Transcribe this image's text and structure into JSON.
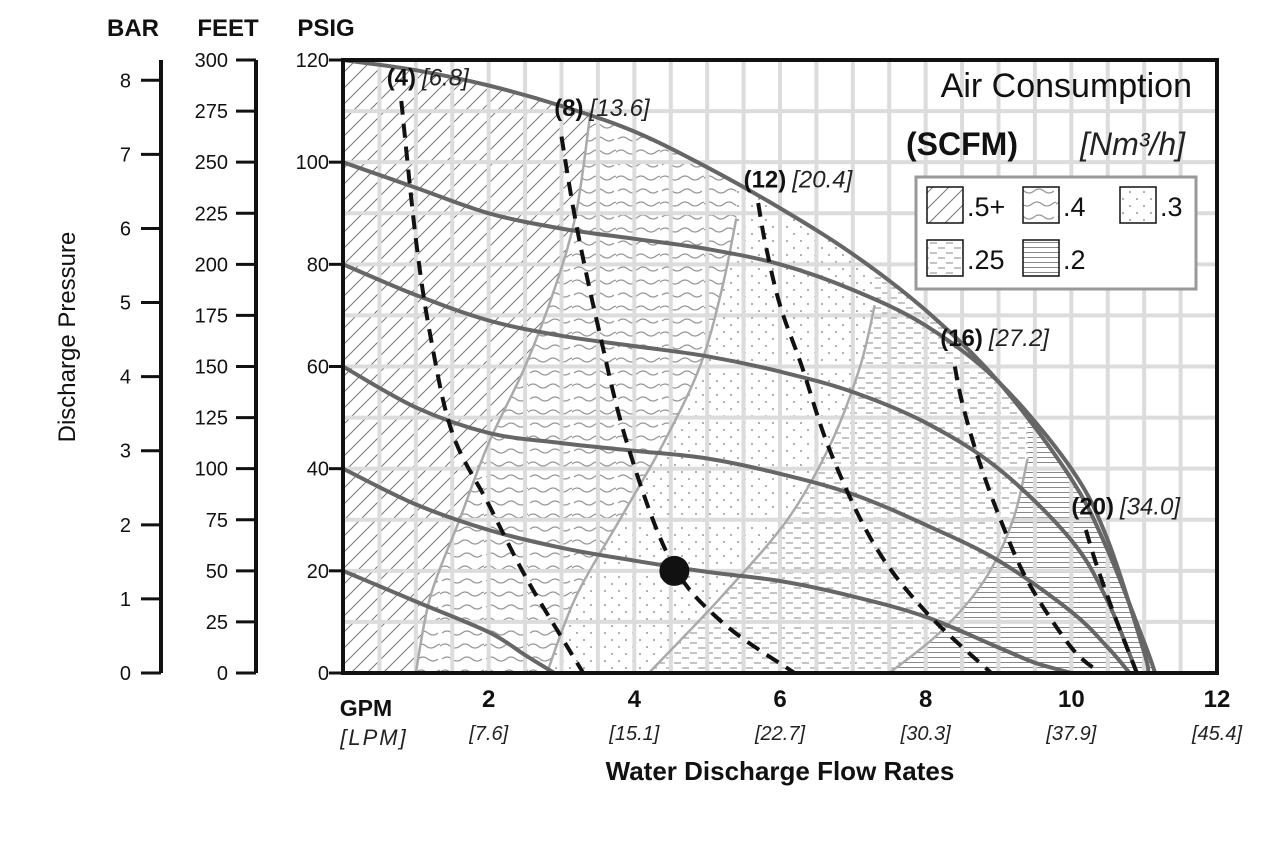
{
  "chart_data": {
    "type": "line",
    "title": "Air Consumption",
    "legend_title": "(SCFM)",
    "legend_title_metric": "[Nm³/h]",
    "legend_position": "top-right",
    "grid": true,
    "xlabel": "Water Discharge Flow Rates",
    "x_unit": "GPM",
    "x_unit_metric": "[LPM]",
    "xlim": [
      0,
      12
    ],
    "x_ticks": [
      {
        "value": 2,
        "label": "2",
        "metric": "[7.6]"
      },
      {
        "value": 4,
        "label": "4",
        "metric": "[15.1]"
      },
      {
        "value": 6,
        "label": "6",
        "metric": "[22.7]"
      },
      {
        "value": 8,
        "label": "8",
        "metric": "[30.3]"
      },
      {
        "value": 10,
        "label": "10",
        "metric": "[37.9]"
      },
      {
        "value": 12,
        "label": "12",
        "metric": "[45.4]"
      }
    ],
    "ylabel": "Discharge Pressure",
    "y_unit": "PSIG",
    "ylim": [
      0,
      120
    ],
    "y_ticks": [
      0,
      20,
      40,
      60,
      80,
      100,
      120
    ],
    "feet_axis": {
      "label": "FEET",
      "range": [
        0,
        300
      ],
      "ticks": [
        0,
        25,
        50,
        75,
        100,
        125,
        150,
        175,
        200,
        225,
        250,
        275,
        300
      ]
    },
    "bar_axis": {
      "label": "BAR",
      "ticks": [
        0,
        1,
        2,
        3,
        4,
        5,
        6,
        7,
        8
      ]
    },
    "pressure_curves": [
      {
        "inlet_psig": 120,
        "points": [
          [
            0,
            120
          ],
          [
            1,
            118
          ],
          [
            2,
            115
          ],
          [
            3,
            111
          ],
          [
            4,
            106
          ],
          [
            5,
            99
          ],
          [
            6,
            91
          ],
          [
            7,
            82
          ],
          [
            8,
            71
          ],
          [
            9,
            57
          ],
          [
            10,
            38
          ],
          [
            10.5,
            24
          ],
          [
            11,
            6
          ],
          [
            11.15,
            0
          ]
        ]
      },
      {
        "inlet_psig": 100,
        "points": [
          [
            0,
            100
          ],
          [
            1,
            95
          ],
          [
            2,
            90
          ],
          [
            3,
            87
          ],
          [
            4,
            85
          ],
          [
            5,
            83
          ],
          [
            6,
            80
          ],
          [
            7,
            75
          ],
          [
            8,
            68
          ],
          [
            9,
            57
          ],
          [
            10,
            40
          ],
          [
            10.5,
            26
          ],
          [
            11,
            4
          ],
          [
            11.05,
            0
          ]
        ]
      },
      {
        "inlet_psig": 80,
        "points": [
          [
            0,
            80
          ],
          [
            1,
            74
          ],
          [
            2,
            69
          ],
          [
            3,
            66
          ],
          [
            4,
            64
          ],
          [
            5,
            62
          ],
          [
            6,
            59
          ],
          [
            7,
            55
          ],
          [
            8,
            49
          ],
          [
            9,
            40
          ],
          [
            10,
            26
          ],
          [
            10.5,
            14
          ],
          [
            10.9,
            0
          ]
        ]
      },
      {
        "inlet_psig": 60,
        "points": [
          [
            0,
            60
          ],
          [
            1,
            52
          ],
          [
            2,
            47
          ],
          [
            3,
            45
          ],
          [
            4,
            43.5
          ],
          [
            5,
            42
          ],
          [
            6,
            39
          ],
          [
            7,
            35
          ],
          [
            8,
            29
          ],
          [
            9,
            22
          ],
          [
            10,
            12
          ],
          [
            10.5,
            5
          ],
          [
            10.8,
            0
          ]
        ]
      },
      {
        "inlet_psig": 40,
        "points": [
          [
            0,
            40
          ],
          [
            1,
            33
          ],
          [
            2,
            28
          ],
          [
            3,
            24.5
          ],
          [
            4,
            22
          ],
          [
            5,
            19.8
          ],
          [
            6,
            18
          ],
          [
            7,
            15
          ],
          [
            8,
            11
          ],
          [
            9,
            5
          ],
          [
            9.5,
            2
          ],
          [
            10,
            0
          ]
        ]
      },
      {
        "inlet_psig": 20,
        "points": [
          [
            0,
            20
          ],
          [
            1,
            14
          ],
          [
            2,
            8
          ],
          [
            2.5,
            3.5
          ],
          [
            2.9,
            0
          ]
        ]
      }
    ],
    "air_consumption_curves": [
      {
        "label": "(4)",
        "metric": "[6.8]",
        "points": [
          [
            0.8,
            112
          ],
          [
            1.0,
            85
          ],
          [
            1.2,
            66
          ],
          [
            1.5,
            47
          ],
          [
            2,
            33
          ],
          [
            2.5,
            19
          ],
          [
            3,
            7
          ],
          [
            3.3,
            0
          ]
        ],
        "label_at": [
          0.6,
          115
        ]
      },
      {
        "label": "(8)",
        "metric": "[13.6]",
        "points": [
          [
            3.0,
            105
          ],
          [
            3.2,
            88
          ],
          [
            3.5,
            68
          ],
          [
            3.9,
            45
          ],
          [
            4.5,
            22
          ],
          [
            5.2,
            10
          ],
          [
            6.2,
            0
          ]
        ],
        "label_at": [
          2.9,
          109
        ]
      },
      {
        "label": "(12)",
        "metric": "[20.4]",
        "points": [
          [
            5.7,
            92
          ],
          [
            5.8,
            84
          ],
          [
            6.0,
            72
          ],
          [
            6.3,
            60
          ],
          [
            6.7,
            43
          ],
          [
            7.3,
            25
          ],
          [
            8,
            12
          ],
          [
            8.9,
            0
          ]
        ],
        "label_at": [
          5.5,
          95
        ]
      },
      {
        "label": "(16)",
        "metric": "[27.2]",
        "points": [
          [
            8.4,
            60
          ],
          [
            8.5,
            53
          ],
          [
            8.7,
            43
          ],
          [
            9,
            31
          ],
          [
            9.4,
            18
          ],
          [
            10,
            5
          ],
          [
            10.4,
            0
          ]
        ],
        "label_at": [
          8.2,
          64
        ]
      },
      {
        "label": "(20)",
        "metric": "[34.0]",
        "points": [
          [
            10.2,
            28
          ],
          [
            10.35,
            21
          ],
          [
            10.6,
            11
          ],
          [
            10.9,
            0
          ]
        ],
        "label_at": [
          10.0,
          31
        ]
      }
    ],
    "efficiency_zones": [
      {
        "label": ".5+",
        "pattern": "diagonal",
        "boundary": [
          [
            3.4,
            110
          ],
          [
            3.2,
            90
          ],
          [
            2.9,
            75
          ],
          [
            2.5,
            60
          ],
          [
            2,
            45
          ],
          [
            1.6,
            30
          ],
          [
            1.2,
            15
          ],
          [
            1.0,
            0
          ]
        ]
      },
      {
        "label": ".4",
        "pattern": "wavy",
        "boundary": [
          [
            5.4,
            89
          ],
          [
            5.2,
            75
          ],
          [
            4.9,
            60
          ],
          [
            4.4,
            45
          ],
          [
            3.8,
            30
          ],
          [
            3.2,
            15
          ],
          [
            2.8,
            0
          ]
        ]
      },
      {
        "label": ".3",
        "pattern": "dots",
        "boundary": [
          [
            7.3,
            72
          ],
          [
            7.1,
            60
          ],
          [
            6.7,
            45
          ],
          [
            6.1,
            30
          ],
          [
            5.2,
            15
          ],
          [
            4.2,
            0
          ]
        ]
      },
      {
        "label": ".25",
        "pattern": "dashes",
        "boundary": [
          [
            9.4,
            42
          ],
          [
            9.2,
            30
          ],
          [
            8.8,
            18
          ],
          [
            8.2,
            8
          ],
          [
            7.5,
            0
          ]
        ]
      },
      {
        "label": ".2",
        "pattern": "horizontal-lines",
        "boundary": []
      }
    ],
    "operating_point": {
      "x": 4.55,
      "y": 20
    }
  }
}
